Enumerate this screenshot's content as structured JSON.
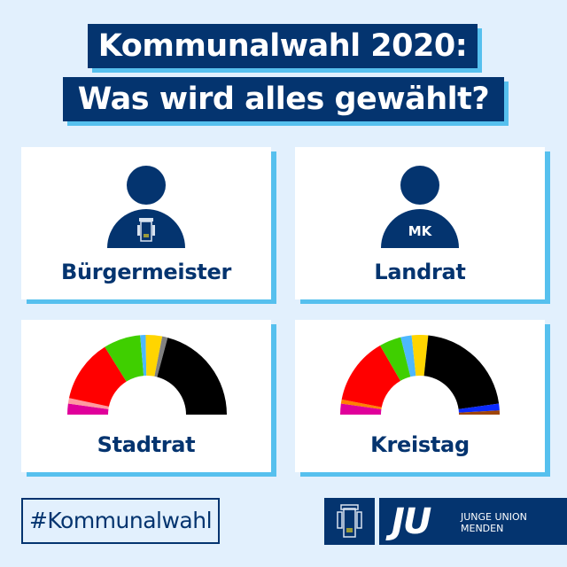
{
  "header": {
    "line1": "Kommunalwahl 2020:",
    "line2": "Was wird alles gewählt?"
  },
  "cards": [
    {
      "label": "Bürgermeister",
      "icon": "person-with-city-crest-icon"
    },
    {
      "label": "Landrat",
      "icon": "person-with-mk-icon",
      "badge": "MK"
    },
    {
      "label": "Stadtrat",
      "icon": "parliament-chart"
    },
    {
      "label": "Kreistag",
      "icon": "parliament-chart"
    }
  ],
  "footer": {
    "hashtag": "#Kommunalwahl",
    "logo_short": "JU",
    "logo_line1": "JUNGE UNION",
    "logo_line2": "MENDEN"
  },
  "colors": {
    "navy": "#04346f",
    "accent": "#56c0ee",
    "background": "#e2f0fd"
  },
  "chart_data": [
    {
      "type": "pie",
      "title": "Stadtrat",
      "shape": "semicircle-parliament",
      "segments": [
        {
          "color": "#e0009a",
          "start": 180,
          "end": 172
        },
        {
          "color": "#ff9aa0",
          "start": 172,
          "end": 168
        },
        {
          "color": "#ff0000",
          "start": 168,
          "end": 122
        },
        {
          "color": "#3fcf00",
          "start": 122,
          "end": 95
        },
        {
          "color": "#4db8ff",
          "start": 95,
          "end": 91
        },
        {
          "color": "#ffd500",
          "start": 91,
          "end": 79
        },
        {
          "color": "#808080",
          "start": 79,
          "end": 75
        },
        {
          "color": "#000000",
          "start": 75,
          "end": 0
        }
      ]
    },
    {
      "type": "pie",
      "title": "Kreistag",
      "shape": "semicircle-parliament",
      "segments": [
        {
          "color": "#e0009a",
          "start": 180,
          "end": 172
        },
        {
          "color": "#ff8000",
          "start": 172,
          "end": 169
        },
        {
          "color": "#ff0000",
          "start": 169,
          "end": 120
        },
        {
          "color": "#3fcf00",
          "start": 120,
          "end": 104
        },
        {
          "color": "#4db8ff",
          "start": 104,
          "end": 96
        },
        {
          "color": "#ffd500",
          "start": 96,
          "end": 84
        },
        {
          "color": "#000000",
          "start": 84,
          "end": 8
        },
        {
          "color": "#0a2aff",
          "start": 8,
          "end": 3
        },
        {
          "color": "#a0460a",
          "start": 3,
          "end": 0
        }
      ]
    }
  ]
}
